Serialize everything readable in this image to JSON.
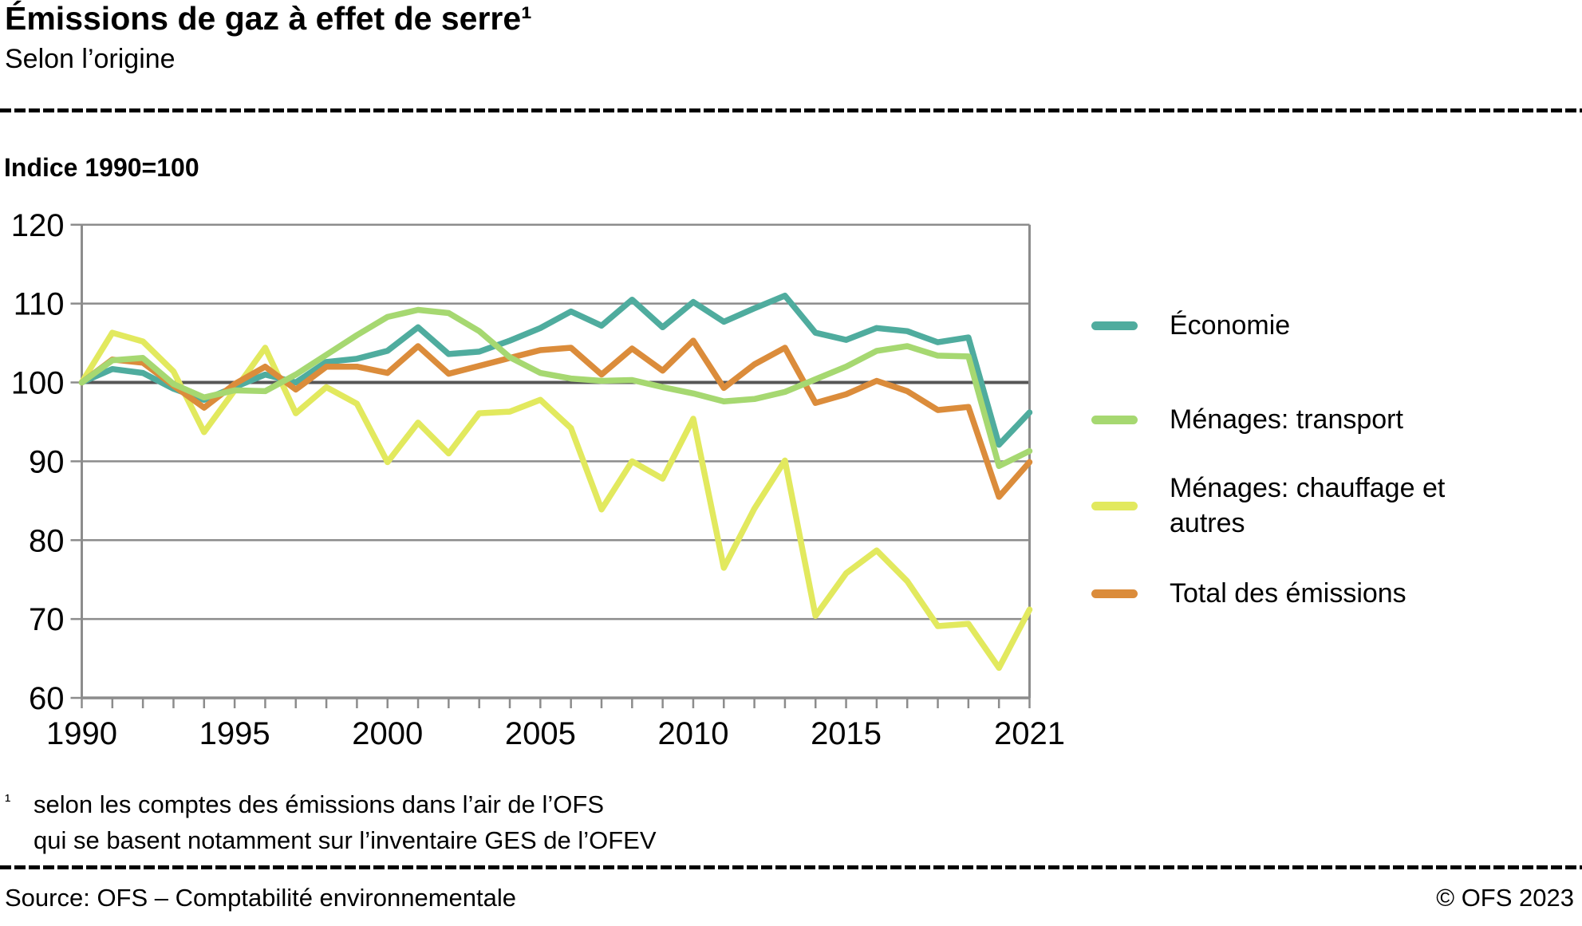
{
  "header": {
    "title": "Émissions de gaz à effet de serre¹",
    "subtitle": "Selon l’origine"
  },
  "chart_data": {
    "type": "line",
    "title": "Émissions de gaz à effet de serre, selon l’origine",
    "ylabel": "Indice 1990=100",
    "xlabel": "",
    "ylim": [
      60,
      120
    ],
    "yticks": [
      60,
      70,
      80,
      90,
      100,
      110,
      120
    ],
    "baseline_value": 100,
    "grid": true,
    "legend_position": "right",
    "x": [
      1990,
      1991,
      1992,
      1993,
      1994,
      1995,
      1996,
      1997,
      1998,
      1999,
      2000,
      2001,
      2002,
      2003,
      2004,
      2005,
      2006,
      2007,
      2008,
      2009,
      2010,
      2011,
      2012,
      2013,
      2014,
      2015,
      2016,
      2017,
      2018,
      2019,
      2020,
      2021
    ],
    "x_tick_labels": [
      1990,
      1995,
      2000,
      2005,
      2010,
      2015,
      2021
    ],
    "series": [
      {
        "name": "Économie",
        "color": "#4FAC9E",
        "values": [
          100,
          101.7,
          101.2,
          99.2,
          97.8,
          99.4,
          101.0,
          100.0,
          102.6,
          103.0,
          104.0,
          107.0,
          103.6,
          103.9,
          105.3,
          106.9,
          109.0,
          107.2,
          110.5,
          107.0,
          110.2,
          107.7,
          109.4,
          111.0,
          106.3,
          105.4,
          106.9,
          106.5,
          105.1,
          105.7,
          92.1,
          96.2
        ]
      },
      {
        "name": "Ménages: transport",
        "color": "#A6D871",
        "values": [
          100,
          102.8,
          103.1,
          99.8,
          98.1,
          99.0,
          98.9,
          101.0,
          103.5,
          106.0,
          108.3,
          109.2,
          108.8,
          106.5,
          103.2,
          101.2,
          100.5,
          100.2,
          100.3,
          99.4,
          98.6,
          97.6,
          97.9,
          98.8,
          100.4,
          102.0,
          104.0,
          104.6,
          103.4,
          103.3,
          89.4,
          91.3
        ]
      },
      {
        "name": "Ménages: chauffage et autres",
        "color": "#E2E95E",
        "values": [
          100,
          106.3,
          105.2,
          101.4,
          93.7,
          99.0,
          104.4,
          96.1,
          99.4,
          97.3,
          89.9,
          94.9,
          91.0,
          96.1,
          96.3,
          97.8,
          94.2,
          83.9,
          90.0,
          87.8,
          95.4,
          76.5,
          84.0,
          90.1,
          70.4,
          75.8,
          78.7,
          74.8,
          69.1,
          69.4,
          63.8,
          71.2
        ]
      },
      {
        "name": "Total des émissions",
        "color": "#DB8C3B",
        "values": [
          100,
          102.9,
          102.5,
          99.6,
          96.8,
          99.8,
          102.0,
          99.1,
          102.0,
          102.0,
          101.2,
          104.6,
          101.1,
          102.1,
          103.1,
          104.1,
          104.4,
          101.0,
          104.3,
          101.5,
          105.3,
          99.3,
          102.3,
          104.4,
          97.4,
          98.5,
          100.2,
          98.9,
          96.5,
          96.9,
          85.5,
          89.9
        ]
      }
    ],
    "colors": {
      "gridline": "#8C8C8C",
      "baseline": "#565656",
      "axis": "#8C8C8C",
      "tick_label": "#000000"
    }
  },
  "footnote": {
    "marker": "¹",
    "line1": "selon les comptes des émissions dans l’air de l’OFS",
    "line2": "qui se basent notamment sur l’inventaire GES de l’OFEV"
  },
  "footer": {
    "source": "Source: OFS – Comptabilité environnementale",
    "copyright": "© OFS 2023"
  }
}
